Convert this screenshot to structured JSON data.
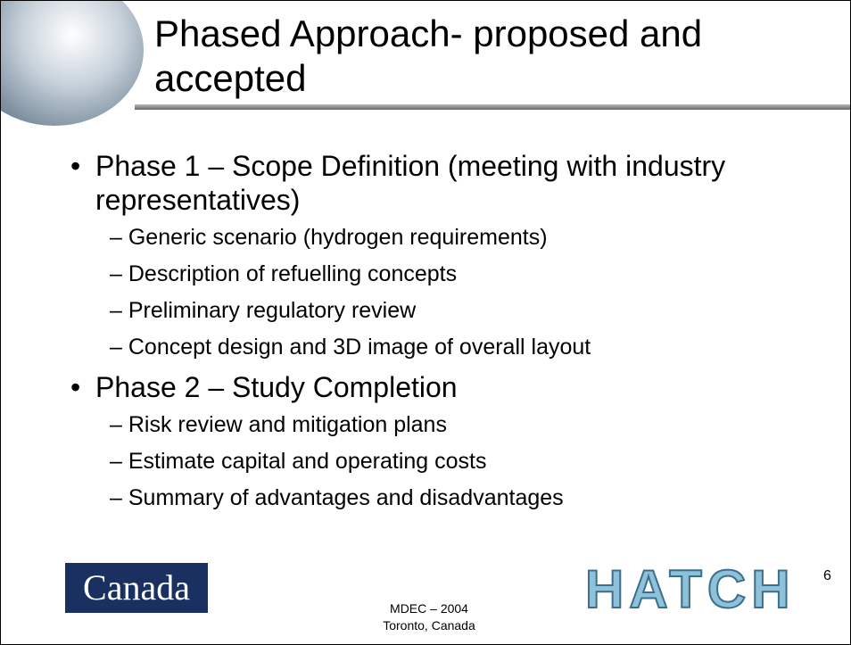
{
  "title": "Phased Approach- proposed and accepted",
  "bullets": [
    {
      "text": "Phase 1 – Scope Definition (meeting with industry representatives)",
      "items": [
        "Generic scenario (hydrogen requirements)",
        "Description of refuelling concepts",
        "Preliminary regulatory review",
        "Concept design and 3D image of overall layout"
      ]
    },
    {
      "text": "Phase 2 – Study Completion",
      "items": [
        "Risk review and mitigation plans",
        "Estimate capital and operating costs",
        "Summary of advantages and disadvantages"
      ]
    }
  ],
  "footer": {
    "left_logo": "Canada",
    "center_line1": "MDEC – 2004",
    "center_line2": "Toronto, Canada",
    "right_logo": "HATCH",
    "page_number": "6"
  }
}
